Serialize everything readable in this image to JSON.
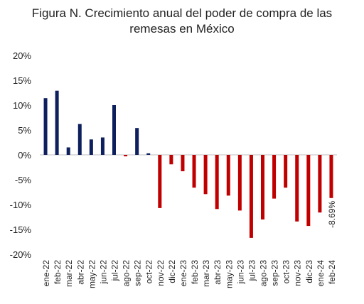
{
  "chart_data": {
    "type": "bar",
    "title_line1": "Figura N. Crecimiento anual del poder de compra de las",
    "title_line2": "remesas en México",
    "xlabel": "",
    "ylabel": "",
    "ylim": [
      -20,
      20
    ],
    "yticks": [
      20,
      15,
      10,
      5,
      0,
      -5,
      -10,
      -15,
      -20
    ],
    "ytick_labels": [
      "20%",
      "15%",
      "10%",
      "5%",
      "0%",
      "-5%",
      "-10%",
      "-15%",
      "-20%"
    ],
    "categories": [
      "ene-22",
      "feb-22",
      "mar-22",
      "abr-22",
      "may-22",
      "jun-22",
      "jul-22",
      "ago-22",
      "sep-22",
      "oct-22",
      "nov-22",
      "dic-22",
      "ene-23",
      "feb-23",
      "mar-23",
      "abr-23",
      "may-23",
      "jun-23",
      "jul-23",
      "ago-23",
      "sep-23",
      "oct-23",
      "nov-23",
      "dic-23",
      "ene-24",
      "feb-24"
    ],
    "values": [
      11.4,
      12.9,
      1.5,
      6.2,
      3.1,
      3.5,
      10.0,
      -0.3,
      5.4,
      0.3,
      -10.7,
      -1.9,
      -3.3,
      -6.6,
      -7.9,
      -10.9,
      -8.2,
      -11.2,
      -16.7,
      -13.0,
      -8.8,
      -6.6,
      -13.4,
      -14.3,
      -11.6,
      -8.69
    ],
    "last_label": "-8.69%",
    "colors": {
      "positive": "#0d1f5c",
      "negative": "#c00000",
      "axis": "#bfbfbf"
    },
    "grid": false,
    "legend": "none"
  }
}
